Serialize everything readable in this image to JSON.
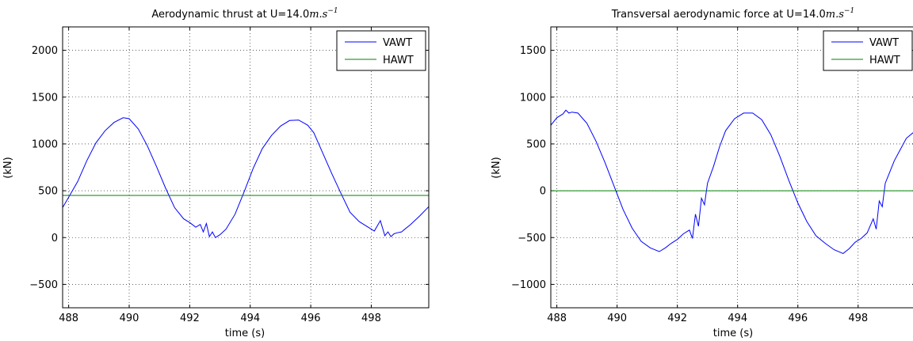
{
  "chart_data": [
    {
      "type": "line",
      "title": "Aerodynamic thrust at U=14.0",
      "title_unit": "m.s",
      "title_unit_exp": "−1",
      "xlabel": "time (s)",
      "ylabel": "(kN)",
      "xlim": [
        487.8,
        499.9
      ],
      "ylim": [
        -750,
        2250
      ],
      "xticks": [
        488,
        490,
        492,
        494,
        496,
        498
      ],
      "yticks": [
        -500,
        0,
        500,
        1000,
        1500,
        2000
      ],
      "xtick_labels": [
        "488",
        "490",
        "492",
        "494",
        "496",
        "498"
      ],
      "ytick_labels": [
        "−500",
        "0",
        "500",
        "1000",
        "1500",
        "2000"
      ],
      "grid": true,
      "legend_position": "top-right",
      "series": [
        {
          "name": "VAWT",
          "color": "#0000ff",
          "x": [
            487.8,
            488.0,
            488.3,
            488.6,
            488.9,
            489.2,
            489.5,
            489.8,
            490.0,
            490.3,
            490.6,
            490.9,
            491.2,
            491.5,
            491.8,
            492.0,
            492.2,
            492.35,
            492.45,
            492.55,
            492.65,
            492.75,
            492.85,
            493.0,
            493.2,
            493.5,
            493.8,
            494.1,
            494.4,
            494.7,
            495.0,
            495.3,
            495.6,
            495.9,
            496.1,
            496.4,
            496.7,
            497.0,
            497.3,
            497.6,
            497.9,
            498.1,
            498.3,
            498.45,
            498.55,
            498.65,
            498.75,
            498.85,
            499.0,
            499.3,
            499.6,
            499.9
          ],
          "y": [
            320,
            430,
            600,
            820,
            1010,
            1140,
            1230,
            1280,
            1270,
            1160,
            980,
            760,
            530,
            320,
            200,
            160,
            110,
            140,
            60,
            150,
            10,
            60,
            0,
            30,
            90,
            250,
            490,
            740,
            950,
            1090,
            1190,
            1250,
            1255,
            1200,
            1120,
            900,
            680,
            470,
            270,
            170,
            110,
            70,
            180,
            20,
            60,
            10,
            40,
            50,
            60,
            140,
            230,
            330
          ]
        },
        {
          "name": "HAWT",
          "color": "#008000",
          "x": [
            487.8,
            499.9
          ],
          "y": [
            450,
            450
          ]
        }
      ]
    },
    {
      "type": "line",
      "title": "Transversal aerodynamic force at U=14.0",
      "title_unit": "m.s",
      "title_unit_exp": "−1",
      "xlabel": "time (s)",
      "ylabel": "(kN)",
      "xlim": [
        487.8,
        499.9
      ],
      "ylim": [
        -1250,
        1750
      ],
      "xticks": [
        488,
        490,
        492,
        494,
        496,
        498
      ],
      "yticks": [
        -1000,
        -500,
        0,
        500,
        1000,
        1500
      ],
      "xtick_labels": [
        "488",
        "490",
        "492",
        "494",
        "496",
        "498"
      ],
      "ytick_labels": [
        "−1000",
        "−500",
        "0",
        "500",
        "1000",
        "1500"
      ],
      "grid": true,
      "legend_position": "top-right",
      "series": [
        {
          "name": "VAWT",
          "color": "#0000ff",
          "x": [
            487.8,
            488.0,
            488.2,
            488.3,
            488.4,
            488.5,
            488.7,
            489.0,
            489.3,
            489.6,
            489.9,
            490.2,
            490.5,
            490.8,
            491.1,
            491.4,
            491.6,
            491.8,
            492.0,
            492.2,
            492.4,
            492.5,
            492.6,
            492.7,
            492.8,
            492.9,
            493.0,
            493.2,
            493.4,
            493.6,
            493.9,
            494.2,
            494.5,
            494.8,
            495.1,
            495.4,
            495.7,
            496.0,
            496.3,
            496.6,
            496.9,
            497.2,
            497.5,
            497.7,
            497.9,
            498.1,
            498.3,
            498.5,
            498.6,
            498.7,
            498.8,
            498.9,
            499.0,
            499.2,
            499.4,
            499.6,
            499.9
          ],
          "y": [
            700,
            780,
            820,
            860,
            830,
            840,
            830,
            720,
            530,
            300,
            50,
            -200,
            -400,
            -540,
            -610,
            -650,
            -610,
            -560,
            -520,
            -460,
            -420,
            -510,
            -250,
            -380,
            -80,
            -150,
            80,
            260,
            470,
            640,
            770,
            830,
            830,
            760,
            600,
            370,
            110,
            -130,
            -330,
            -480,
            -560,
            -630,
            -670,
            -620,
            -550,
            -510,
            -450,
            -300,
            -410,
            -110,
            -170,
            80,
            160,
            320,
            440,
            560,
            640
          ]
        },
        {
          "name": "HAWT",
          "color": "#008000",
          "x": [
            487.8,
            499.9
          ],
          "y": [
            0,
            0
          ]
        }
      ]
    }
  ]
}
